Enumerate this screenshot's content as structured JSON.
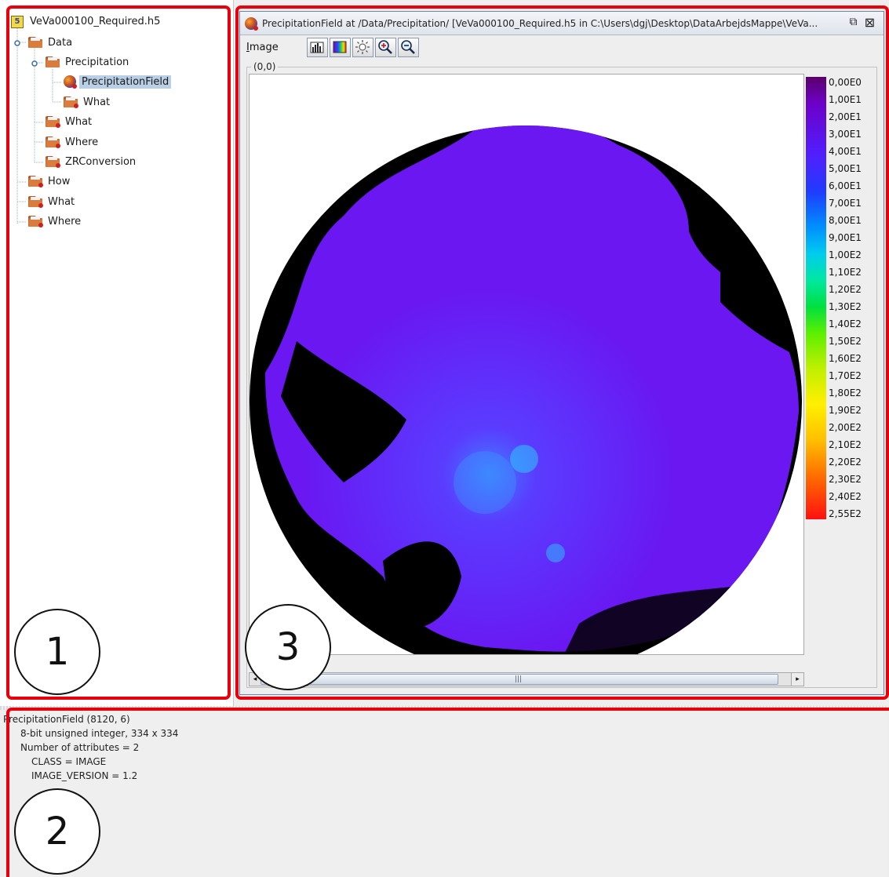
{
  "tree": {
    "root_label": "VeVa000100_Required.h5",
    "nodes": [
      {
        "label": "Data",
        "icon": "folder-icon",
        "depth": 1
      },
      {
        "label": "Precipitation",
        "icon": "folder-icon",
        "depth": 2
      },
      {
        "label": "PrecipitationField",
        "icon": "dataset-image-icon",
        "depth": 3,
        "selected": true
      },
      {
        "label": "What",
        "icon": "folder-icon",
        "depth": 3
      },
      {
        "label": "What",
        "icon": "folder-icon",
        "depth": 2
      },
      {
        "label": "Where",
        "icon": "folder-icon",
        "depth": 2
      },
      {
        "label": "ZRConversion",
        "icon": "folder-icon",
        "depth": 2
      },
      {
        "label": "How",
        "icon": "folder-icon",
        "depth": 1
      },
      {
        "label": "What",
        "icon": "folder-icon",
        "depth": 1
      },
      {
        "label": "Where",
        "icon": "folder-icon",
        "depth": 1
      }
    ]
  },
  "viewer": {
    "title": "PrecipitationField  at  /Data/Precipitation/  [VeVa000100_Required.h5  in  C:\\Users\\dgj\\Desktop\\DataArbejdsMappe\\VeVa...",
    "maximize_glyph": "⧉",
    "close_glyph": "⊠",
    "menu_image": "Image",
    "menu_image_mnemonic": "I",
    "menu_image_rest": "mage",
    "toolbar_icons": [
      "histogram-icon",
      "palette-icon",
      "brightness-icon",
      "zoom-in-icon",
      "zoom-out-icon"
    ],
    "origin_label": "(0,0)",
    "colorbar_labels": [
      "0,00E0",
      "1,00E1",
      "2,00E1",
      "3,00E1",
      "4,00E1",
      "5,00E1",
      "6,00E1",
      "7,00E1",
      "8,00E1",
      "9,00E1",
      "1,00E2",
      "1,10E2",
      "1,20E2",
      "1,30E2",
      "1,40E2",
      "1,50E2",
      "1,60E2",
      "1,70E2",
      "1,80E2",
      "1,90E2",
      "2,00E2",
      "2,10E2",
      "2,20E2",
      "2,30E2",
      "2,40E2",
      "2,55E2"
    ],
    "scroll_grip": "|||"
  },
  "info": {
    "lines": [
      "PrecipitationField (8120, 6)",
      "8-bit unsigned integer,    334 x 334",
      "Number of attributes = 2",
      "CLASS = IMAGE",
      "IMAGE_VERSION = 1.2"
    ]
  },
  "annotations": {
    "one": "1",
    "two": "2",
    "three": "3",
    "box_color": "#e8000c"
  }
}
